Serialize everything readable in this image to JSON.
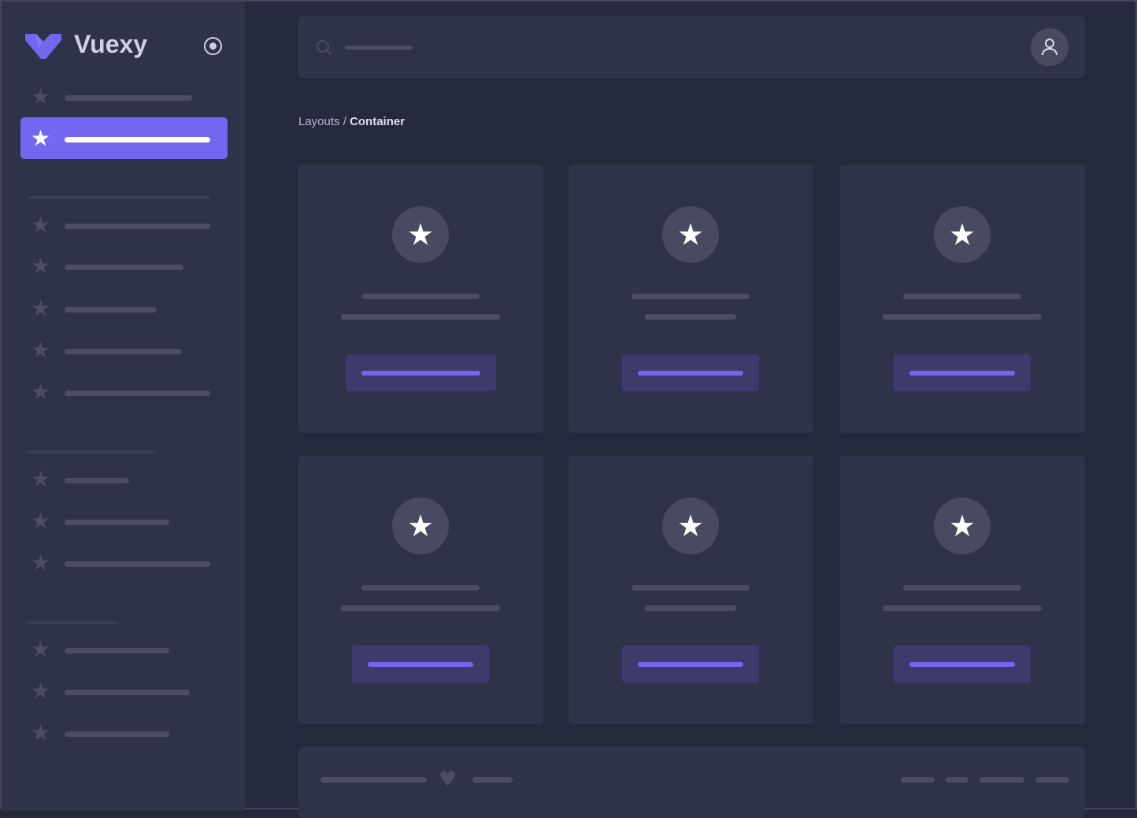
{
  "brand": {
    "name": "Vuexy",
    "logo_color": "#7367f0"
  },
  "breadcrumb": {
    "parent": "Layouts",
    "separator": " / ",
    "current": "Container"
  },
  "colors": {
    "primary": "#7367f0",
    "sidebar": "#2f3349",
    "background": "#25293c",
    "skeleton": "#4a4d63"
  },
  "icons": {
    "sidebar_toggle": "radio-circle-icon",
    "search": "search-icon",
    "user": "user-icon",
    "nav": "star-icon",
    "card": "star-icon",
    "footer": "heart-icon"
  }
}
